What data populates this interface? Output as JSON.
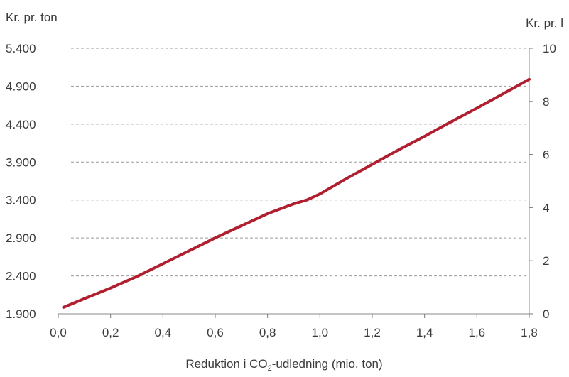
{
  "chart_data": {
    "type": "line",
    "left_axis_label": "Kr. pr. ton",
    "right_axis_label": "Kr. pr. l",
    "xlabel_main": "Reduktion i CO",
    "xlabel_sub": "2",
    "xlabel_rest": "-udledning (mio. ton)",
    "x_ticks": [
      "0,0",
      "0,2",
      "0,4",
      "0,6",
      "0,8",
      "1,0",
      "1,2",
      "1,4",
      "1,6",
      "1,8"
    ],
    "x_tick_values": [
      0,
      0.2,
      0.4,
      0.6,
      0.8,
      1.0,
      1.2,
      1.4,
      1.6,
      1.8
    ],
    "xlim": [
      0,
      1.8
    ],
    "y_left_ticks": [
      "1.900",
      "2.400",
      "2.900",
      "3.400",
      "3.900",
      "4.400",
      "4.900",
      "5.400"
    ],
    "y_left_tick_values": [
      1900,
      2400,
      2900,
      3400,
      3900,
      4400,
      4900,
      5400
    ],
    "ylim_left": [
      1900,
      5400
    ],
    "y_right_ticks": [
      "0",
      "2",
      "4",
      "6",
      "8",
      "10"
    ],
    "y_right_tick_values": [
      0,
      2,
      4,
      6,
      8,
      10
    ],
    "ylim_right": [
      0,
      10
    ],
    "grid": "horizontal dashed",
    "series": [
      {
        "color": "#b01f2f",
        "x": [
          0.02,
          0.1,
          0.2,
          0.3,
          0.4,
          0.5,
          0.6,
          0.7,
          0.8,
          0.9,
          0.95,
          1.0,
          1.1,
          1.2,
          1.3,
          1.4,
          1.5,
          1.6,
          1.7,
          1.8
        ],
        "y": [
          1985,
          2100,
          2240,
          2390,
          2560,
          2730,
          2900,
          3060,
          3220,
          3350,
          3400,
          3480,
          3680,
          3870,
          4060,
          4240,
          4430,
          4610,
          4800,
          4990
        ]
      }
    ]
  }
}
